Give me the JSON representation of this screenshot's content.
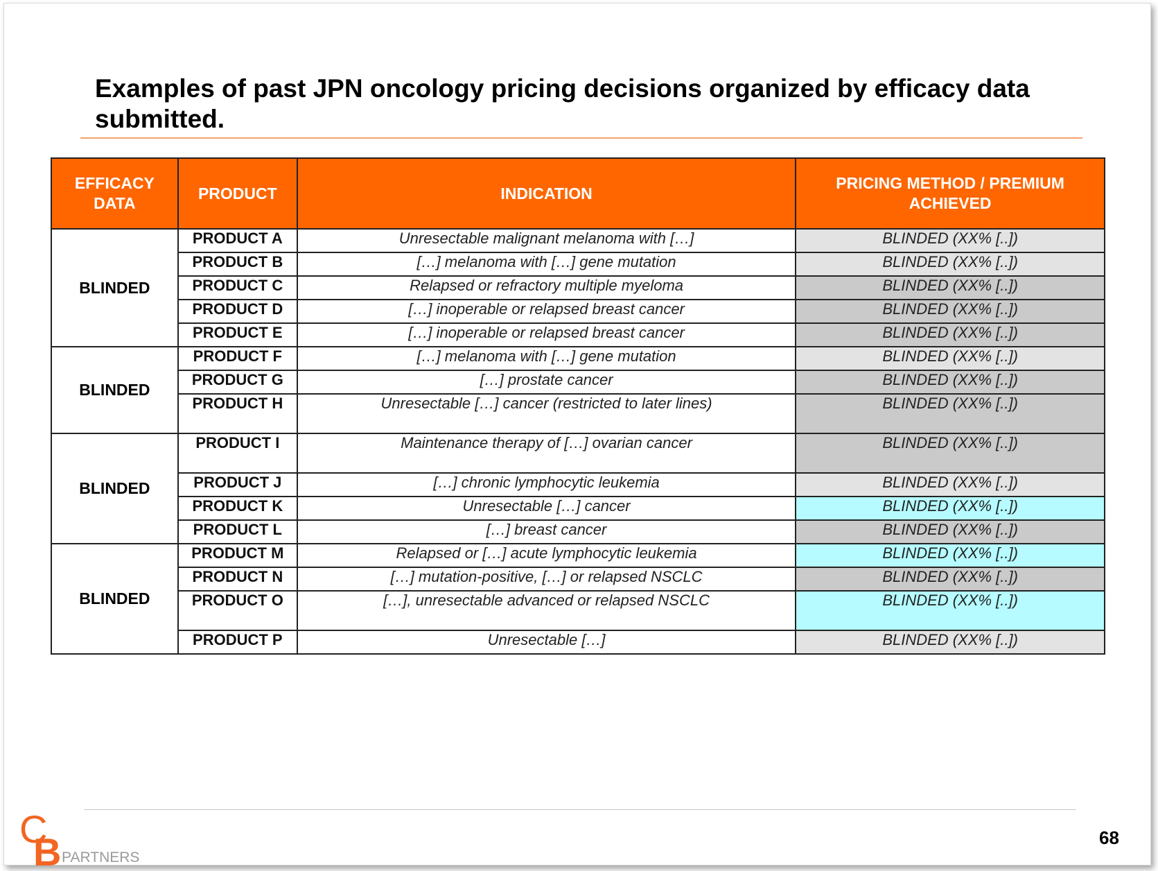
{
  "title": "Examples of past JPN oncology pricing decisions organized by efficacy data submitted.",
  "table": {
    "headers": {
      "efficacy": "EFFICACY DATA",
      "product": "PRODUCT",
      "indication": "INDICATION",
      "pricing": "PRICING METHOD / PREMIUM ACHIEVED"
    },
    "groups": [
      {
        "efficacy": "BLINDED",
        "rows": [
          {
            "product": "PRODUCT A",
            "indication": "Unresectable malignant melanoma with […]",
            "pricing": "BLINDED (XX% [..])",
            "fill": "light",
            "tall": false
          },
          {
            "product": "PRODUCT B",
            "indication": "[…] melanoma with […] gene mutation",
            "pricing": "BLINDED (XX% [..])",
            "fill": "light",
            "tall": false
          },
          {
            "product": "PRODUCT C",
            "indication": "Relapsed or refractory multiple myeloma",
            "pricing": "BLINDED (XX% [..])",
            "fill": "dark",
            "tall": false
          },
          {
            "product": "PRODUCT D",
            "indication": "[…] inoperable or relapsed breast cancer",
            "pricing": "BLINDED (XX% [..])",
            "fill": "dark",
            "tall": false
          },
          {
            "product": "PRODUCT E",
            "indication": "[…] inoperable or relapsed breast cancer",
            "pricing": "BLINDED (XX% [..])",
            "fill": "dark",
            "tall": false
          }
        ]
      },
      {
        "efficacy": "BLINDED",
        "rows": [
          {
            "product": "PRODUCT F",
            "indication": "[…] melanoma with […] gene mutation",
            "pricing": "BLINDED (XX% [..])",
            "fill": "light",
            "tall": false
          },
          {
            "product": "PRODUCT G",
            "indication": "[…] prostate cancer",
            "pricing": "BLINDED (XX% [..])",
            "fill": "dark",
            "tall": false
          },
          {
            "product": "PRODUCT H",
            "indication": "Unresectable […] cancer (restricted to later lines)",
            "pricing": "BLINDED (XX% [..])",
            "fill": "dark",
            "tall": true
          }
        ]
      },
      {
        "efficacy": "BLINDED",
        "rows": [
          {
            "product": "PRODUCT I",
            "indication": "Maintenance therapy of […] ovarian cancer",
            "pricing": "BLINDED (XX% [..])",
            "fill": "dark",
            "tall": true
          },
          {
            "product": "PRODUCT J",
            "indication": "[…] chronic lymphocytic leukemia",
            "pricing": "BLINDED (XX% [..])",
            "fill": "light",
            "tall": false
          },
          {
            "product": "PRODUCT K",
            "indication": "Unresectable […] cancer",
            "pricing": "BLINDED (XX% [..])",
            "fill": "cyan",
            "tall": false
          },
          {
            "product": "PRODUCT L",
            "indication": "[…] breast cancer",
            "pricing": "BLINDED (XX% [..])",
            "fill": "dark",
            "tall": false
          }
        ]
      },
      {
        "efficacy": "BLINDED",
        "rows": [
          {
            "product": "PRODUCT M",
            "indication": "Relapsed or […] acute lymphocytic leukemia",
            "pricing": "BLINDED (XX% [..])",
            "fill": "cyan",
            "tall": false
          },
          {
            "product": "PRODUCT N",
            "indication": "[…] mutation-positive, […] or relapsed NSCLC",
            "pricing": "BLINDED (XX% [..])",
            "fill": "dark",
            "tall": false
          },
          {
            "product": "PRODUCT O",
            "indication": "[…], unresectable advanced or relapsed NSCLC",
            "pricing": "BLINDED (XX% [..])",
            "fill": "cyan",
            "tall": true
          },
          {
            "product": "PRODUCT P",
            "indication": "Unresectable […]",
            "pricing": "BLINDED (XX% [..])",
            "fill": "light",
            "tall": false
          }
        ]
      }
    ]
  },
  "colors": {
    "header_bg": "#ff6600",
    "header_text": "#ffffff",
    "title_rule": "#f4a169",
    "fill_light": "#e3e3e3",
    "fill_dark": "#cacaca",
    "fill_cyan": "#b5fbff"
  },
  "footer": {
    "page_number": "68",
    "logo_text": "PARTNERS",
    "logo_letters": "CB"
  }
}
